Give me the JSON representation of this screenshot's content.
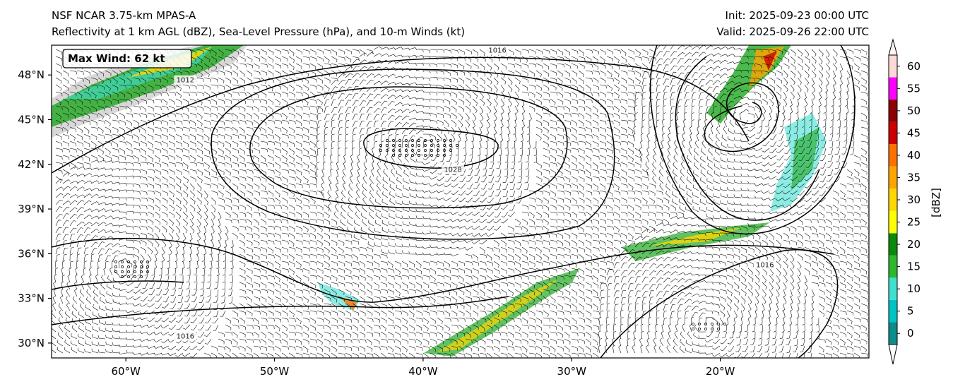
{
  "header": {
    "title_line1": "NSF NCAR 3.75-km MPAS-A",
    "title_line2": "Reflectivity at 1 km AGL (dBZ), Sea-Level Pressure (hPa), and 10-m Winds (kt)",
    "init": "Init: 2025-09-23 00:00 UTC",
    "valid": "Valid: 2025-09-26 22:00 UTC"
  },
  "annotation": {
    "max_wind": "Max Wind: 62 kt"
  },
  "map": {
    "lon_range": [
      -65,
      -10
    ],
    "lat_range": [
      29,
      50
    ],
    "lat_ticks": [
      {
        "value": 48,
        "label": "48°N"
      },
      {
        "value": 45,
        "label": "45°N"
      },
      {
        "value": 42,
        "label": "42°N"
      },
      {
        "value": 39,
        "label": "39°N"
      },
      {
        "value": 36,
        "label": "36°N"
      },
      {
        "value": 33,
        "label": "33°N"
      },
      {
        "value": 30,
        "label": "30°N"
      }
    ],
    "lon_ticks": [
      {
        "value": -60,
        "label": "60°W"
      },
      {
        "value": -50,
        "label": "50°W"
      },
      {
        "value": -40,
        "label": "40°W"
      },
      {
        "value": -30,
        "label": "30°W"
      },
      {
        "value": -20,
        "label": "20°W"
      }
    ],
    "isobar_labels": [
      {
        "text": "1016",
        "lon": -35,
        "lat": 49.5
      },
      {
        "text": "1012",
        "lon": -56,
        "lat": 47.5
      },
      {
        "text": "1028",
        "lon": -38,
        "lat": 41.5
      },
      {
        "text": "1016",
        "lon": -56,
        "lat": 30.3
      },
      {
        "text": "1016",
        "lon": -17,
        "lat": 35.1
      }
    ]
  },
  "colorbar": {
    "label": "[dBZ]",
    "ticks": [
      "0",
      "5",
      "10",
      "15",
      "20",
      "25",
      "30",
      "35",
      "40",
      "45",
      "50",
      "55",
      "60"
    ],
    "colors": [
      "#0b8d8d",
      "#00c4c4",
      "#40e0d0",
      "#2eb82e",
      "#0a8a0a",
      "#ffff00",
      "#ffd700",
      "#ffa500",
      "#ff7200",
      "#cc0000",
      "#8b0000",
      "#ff00ff",
      "#ffd8d8"
    ]
  }
}
